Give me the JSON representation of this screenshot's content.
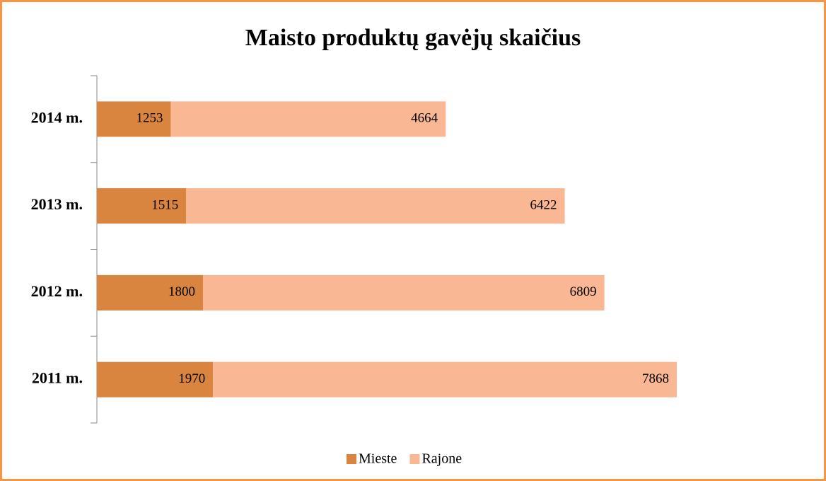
{
  "chart_data": {
    "type": "stacked-bar-horizontal",
    "title": "Maisto produktų gavėjų skaičius",
    "categories": [
      "2014 m.",
      "2013 m.",
      "2012 m.",
      "2011 m."
    ],
    "series": [
      {
        "name": "Mieste",
        "color": "#d9843f",
        "values": [
          1253,
          1515,
          1800,
          1970
        ]
      },
      {
        "name": "Rajone",
        "color": "#f9b793",
        "values": [
          4664,
          6422,
          6809,
          7868
        ]
      }
    ],
    "legend": "bottom"
  }
}
